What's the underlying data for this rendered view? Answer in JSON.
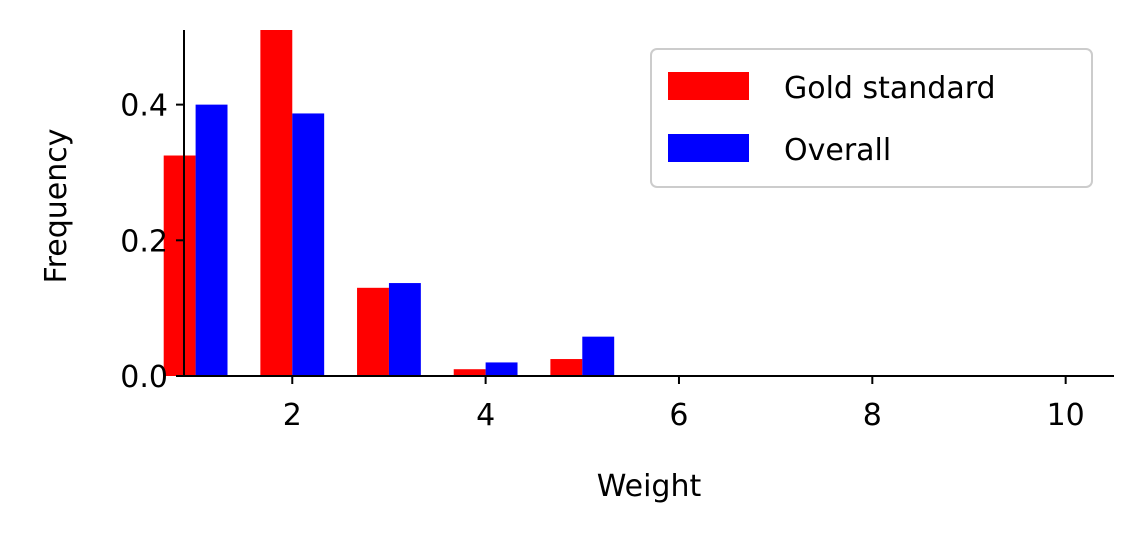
{
  "chart_data": {
    "type": "bar",
    "title": "",
    "xlabel": "Weight",
    "ylabel": "Frequency",
    "xlim": [
      0.88,
      10.5
    ],
    "ylim": [
      0,
      0.51
    ],
    "x_ticks": [
      2,
      4,
      6,
      8,
      10
    ],
    "y_ticks": [
      0.0,
      0.2,
      0.4
    ],
    "y_tick_labels": [
      "0.0",
      "0.2",
      "0.4"
    ],
    "bar_width": 0.33,
    "categories": [
      1,
      2,
      3,
      4,
      5
    ],
    "series": [
      {
        "name": "Gold standard",
        "color": "#ff0000",
        "offset": -0.165,
        "values": [
          0.325,
          0.51,
          0.13,
          0.01,
          0.025
        ]
      },
      {
        "name": "Overall",
        "color": "#0000ff",
        "offset": 0.165,
        "values": [
          0.4,
          0.387,
          0.137,
          0.02,
          0.058
        ]
      }
    ],
    "legend": {
      "position": "top-right"
    },
    "grid": false
  }
}
